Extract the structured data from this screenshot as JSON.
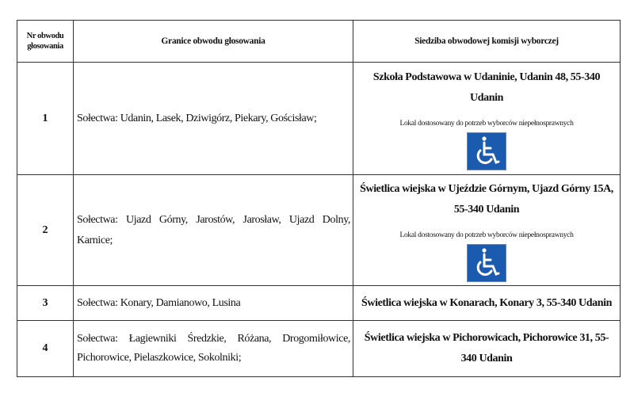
{
  "headers": {
    "col1": "Nr obwodu głosowania",
    "col2": "Granice obwodu głosowania",
    "col3": "Siedziba obwodowej komisji wyborczej"
  },
  "accessibility_icon_color": "#1a5bb0",
  "rows": [
    {
      "number": "1",
      "bounds": "Sołectwa: Udanin, Lasek, Dziwigórz, Piekary, Gościsław;",
      "address": "Szkoła Podstawowa w Udaninie, Udanin 48, 55-340 Udanin",
      "accessible_note": "Lokal dostosowany do potrzeb wyborców niepełnosprawnych",
      "icon": "wheelchair-icon"
    },
    {
      "number": "2",
      "bounds": "Sołectwa: Ujazd Górny, Jarostów, Jarosław, Ujazd Dolny, Karnice;",
      "address": "Świetlica wiejska w Ujeździe Górnym, Ujazd Górny 15A, 55-340 Udanin",
      "accessible_note": "Lokal dostosowany do potrzeb wyborców niepełnosprawnych",
      "icon": "wheelchair-icon"
    },
    {
      "number": "3",
      "bounds": "Sołectwa: Konary, Damianowo, Lusina",
      "address": "Świetlica wiejska w Konarach, Konary 3, 55-340 Udanin"
    },
    {
      "number": "4",
      "bounds": "Sołectwa: Łagiewniki Średzkie, Różana, Drogomiłowice, Pichorowice, Pielaszkowice, Sokolniki;",
      "address": "Świetlica wiejska w Pichorowicach, Pichorowice 31, 55-340 Udanin"
    }
  ]
}
